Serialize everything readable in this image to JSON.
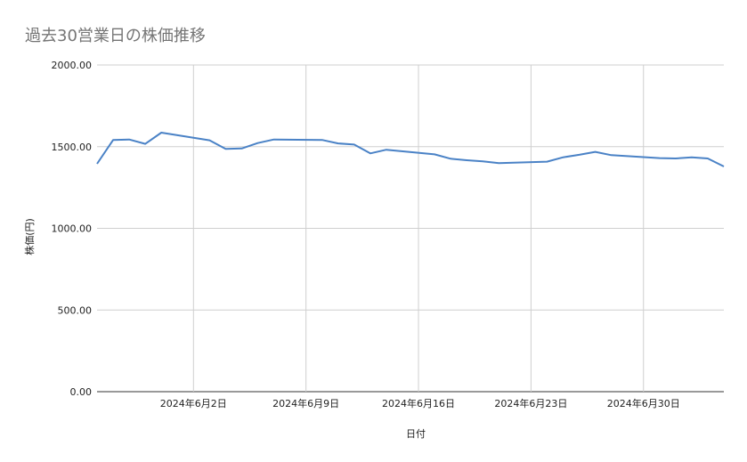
{
  "chart_data": {
    "type": "line",
    "title": "過去30営業日の株価推移",
    "xlabel": "日付",
    "ylabel": "株価(円)",
    "ylim": [
      0,
      2000
    ],
    "xlim": [
      "2024-05-27",
      "2024-07-05"
    ],
    "yticks": [
      "0.00",
      "500.00",
      "1000.00",
      "1500.00",
      "2000.00"
    ],
    "xticks": [
      {
        "date": "2024-06-02",
        "label": "2024年6月2日"
      },
      {
        "date": "2024-06-09",
        "label": "2024年6月9日"
      },
      {
        "date": "2024-06-16",
        "label": "2024年6月16日"
      },
      {
        "date": "2024-06-23",
        "label": "2024年6月23日"
      },
      {
        "date": "2024-06-30",
        "label": "2024年6月30日"
      }
    ],
    "grid": true,
    "line_color": "#4a82c6",
    "x": [
      "2024-05-27",
      "2024-05-28",
      "2024-05-29",
      "2024-05-30",
      "2024-05-31",
      "2024-06-03",
      "2024-06-04",
      "2024-06-05",
      "2024-06-06",
      "2024-06-07",
      "2024-06-10",
      "2024-06-11",
      "2024-06-12",
      "2024-06-13",
      "2024-06-14",
      "2024-06-17",
      "2024-06-18",
      "2024-06-19",
      "2024-06-20",
      "2024-06-21",
      "2024-06-24",
      "2024-06-25",
      "2024-06-26",
      "2024-06-27",
      "2024-06-28",
      "2024-07-01",
      "2024-07-02",
      "2024-07-03",
      "2024-07-04",
      "2024-07-05"
    ],
    "values": [
      1395,
      1541,
      1544,
      1517,
      1586,
      1539,
      1486,
      1489,
      1522,
      1544,
      1541,
      1520,
      1513,
      1459,
      1481,
      1453,
      1426,
      1417,
      1410,
      1399,
      1408,
      1435,
      1450,
      1468,
      1448,
      1430,
      1428,
      1435,
      1428,
      1379
    ]
  }
}
